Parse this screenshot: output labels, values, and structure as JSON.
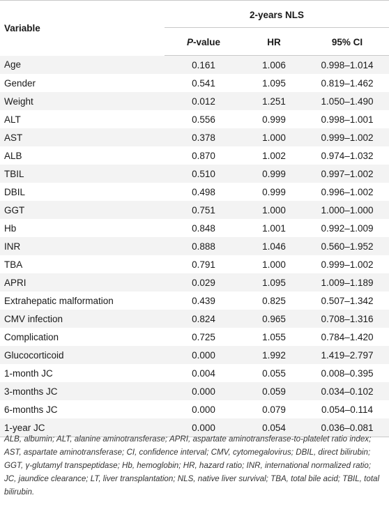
{
  "table": {
    "header": {
      "variable": "Variable",
      "group": "2-years NLS",
      "p_prefix": "P",
      "p_suffix": "-value",
      "hr": "HR",
      "ci": "95% CI"
    },
    "rows": [
      {
        "variable": "Age",
        "p": "0.161",
        "hr": "1.006",
        "ci": "0.998–1.014"
      },
      {
        "variable": "Gender",
        "p": "0.541",
        "hr": "1.095",
        "ci": "0.819–1.462"
      },
      {
        "variable": "Weight",
        "p": "0.012",
        "hr": "1.251",
        "ci": "1.050–1.490"
      },
      {
        "variable": "ALT",
        "p": "0.556",
        "hr": "0.999",
        "ci": "0.998–1.001"
      },
      {
        "variable": "AST",
        "p": "0.378",
        "hr": "1.000",
        "ci": "0.999–1.002"
      },
      {
        "variable": "ALB",
        "p": "0.870",
        "hr": "1.002",
        "ci": "0.974–1.032"
      },
      {
        "variable": "TBIL",
        "p": "0.510",
        "hr": "0.999",
        "ci": "0.997–1.002"
      },
      {
        "variable": "DBIL",
        "p": "0.498",
        "hr": "0.999",
        "ci": "0.996–1.002"
      },
      {
        "variable": "GGT",
        "p": "0.751",
        "hr": "1.000",
        "ci": "1.000–1.000"
      },
      {
        "variable": "Hb",
        "p": "0.848",
        "hr": "1.001",
        "ci": "0.992–1.009"
      },
      {
        "variable": "INR",
        "p": "0.888",
        "hr": "1.046",
        "ci": "0.560–1.952"
      },
      {
        "variable": "TBA",
        "p": "0.791",
        "hr": "1.000",
        "ci": "0.999–1.002"
      },
      {
        "variable": "APRI",
        "p": "0.029",
        "hr": "1.095",
        "ci": "1.009–1.189"
      },
      {
        "variable": "Extrahepatic malformation",
        "p": "0.439",
        "hr": "0.825",
        "ci": "0.507–1.342"
      },
      {
        "variable": "CMV infection",
        "p": "0.824",
        "hr": "0.965",
        "ci": "0.708–1.316"
      },
      {
        "variable": "Complication",
        "p": "0.725",
        "hr": "1.055",
        "ci": "0.784–1.420"
      },
      {
        "variable": "Glucocorticoid",
        "p": "0.000",
        "hr": "1.992",
        "ci": "1.419–2.797"
      },
      {
        "variable": "1-month JC",
        "p": "0.004",
        "hr": "0.055",
        "ci": "0.008–0.395"
      },
      {
        "variable": "3-months JC",
        "p": "0.000",
        "hr": "0.059",
        "ci": "0.034–0.102"
      },
      {
        "variable": "6-months JC",
        "p": "0.000",
        "hr": "0.079",
        "ci": "0.054–0.114"
      },
      {
        "variable": "1-year JC",
        "p": "0.000",
        "hr": "0.054",
        "ci": "0.036–0.081"
      }
    ]
  },
  "footnote": "ALB, albumin; ALT, alanine aminotransferase; APRI, aspartate aminotransferase-to-platelet ratio index; AST, aspartate aminotransferase; CI, confidence interval; CMV, cytomegalovirus; DBIL, direct bilirubin; GGT, γ-glutamyl transpeptidase; Hb, hemoglobin; HR, hazard ratio; INR, international normalized ratio; JC, jaundice clearance; LT, liver transplantation; NLS, native liver survival; TBA, total bile acid; TBIL, total bilirubin."
}
